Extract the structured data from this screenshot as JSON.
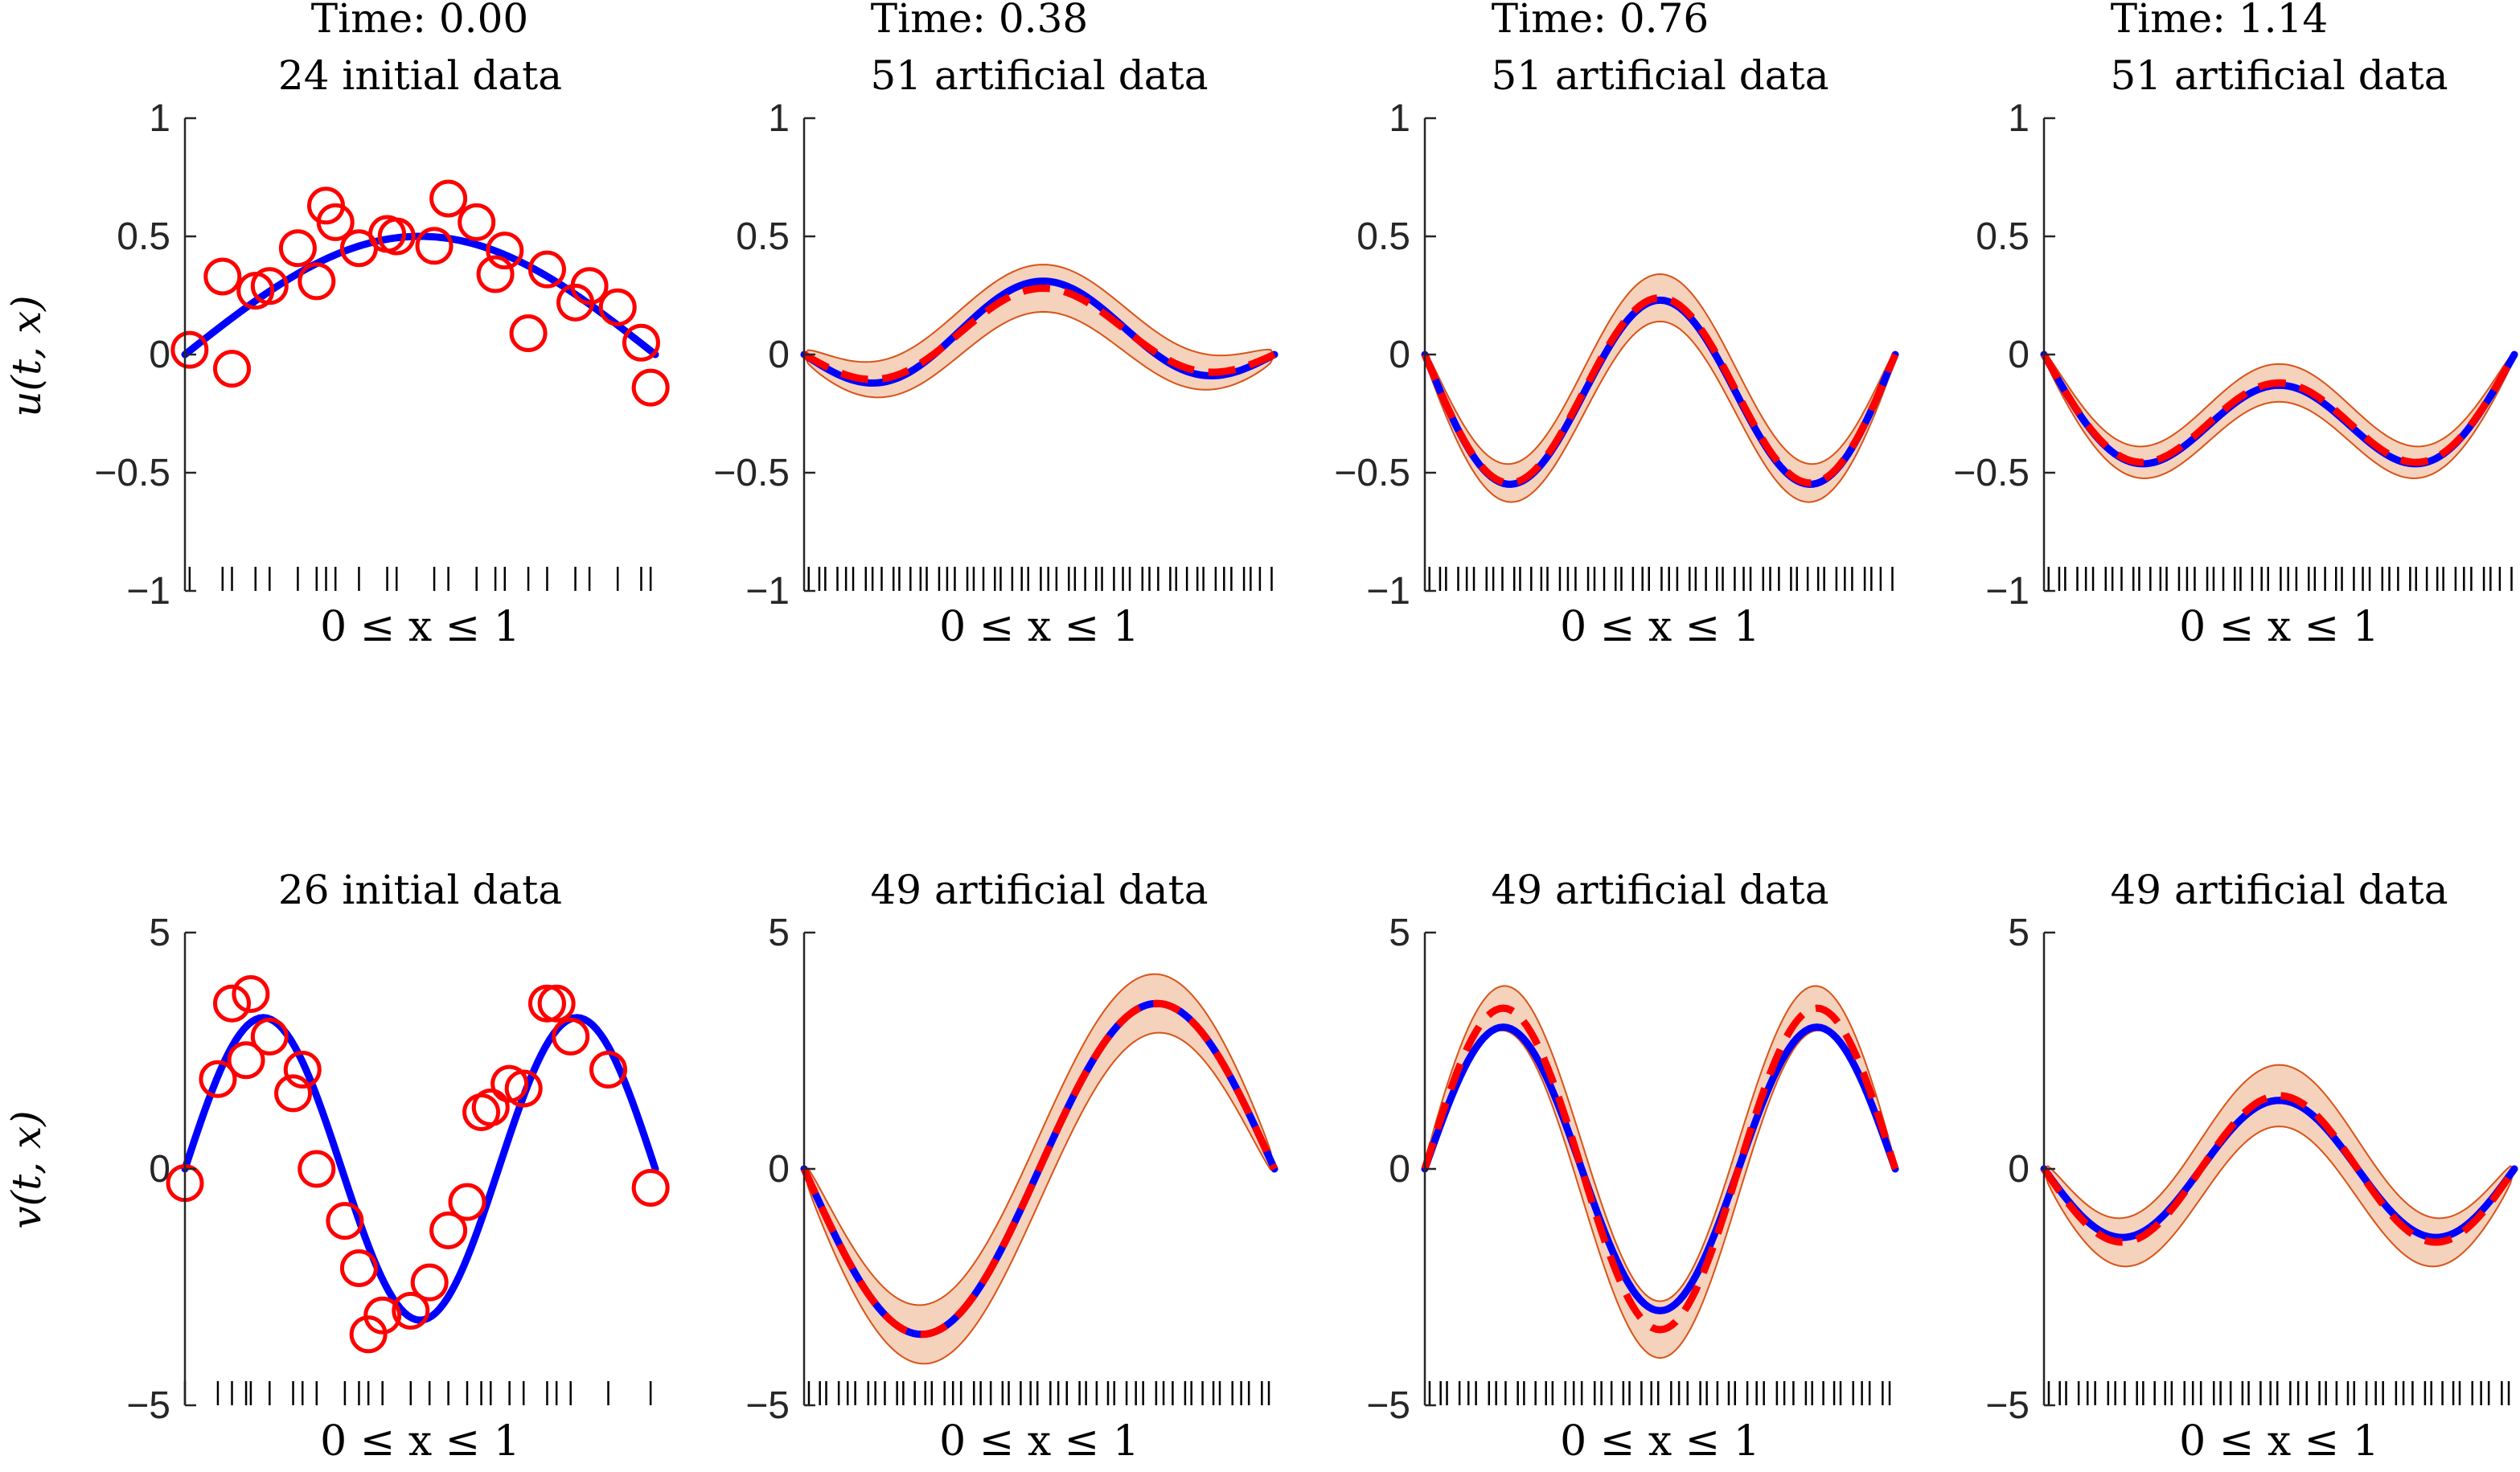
{
  "figure": {
    "row_ylabels": [
      "u(t, x)",
      "v(t, x)"
    ],
    "xlabel": "0 ≤ x ≤ 1",
    "time_labels": [
      "Time: 0.00",
      "Time: 0.38",
      "Time: 0.76",
      "Time: 1.14"
    ]
  },
  "colors": {
    "truth": "#0000ff",
    "mean": "#ff0000",
    "band_fill": "#f5d2bb",
    "band_edge": "#d95319",
    "data_marker": "#ff0000",
    "axis": "#262626"
  },
  "chart_data": [
    {
      "type": "line",
      "panel": "u-0",
      "row": 0,
      "col": 0,
      "title": "24 initial data",
      "time": "Time: 0.00",
      "ylabel": "u(t, x)",
      "xlabel": "0 ≤ x ≤ 1",
      "xlim": [
        0,
        1
      ],
      "ylim": [
        -1,
        1
      ],
      "yticks": [
        -1,
        -0.5,
        0,
        0.5,
        1
      ],
      "truth": {
        "kind": "sin",
        "a1": 0.5,
        "a2": 0,
        "a3": 0
      },
      "scatter": {
        "x": [
          0.01,
          0.08,
          0.1,
          0.15,
          0.18,
          0.24,
          0.28,
          0.3,
          0.32,
          0.37,
          0.43,
          0.45,
          0.53,
          0.56,
          0.62,
          0.66,
          0.68,
          0.73,
          0.77,
          0.83,
          0.86,
          0.92,
          0.97,
          0.99
        ],
        "y": [
          0.02,
          0.33,
          -0.06,
          0.27,
          0.29,
          0.45,
          0.31,
          0.63,
          0.56,
          0.45,
          0.51,
          0.5,
          0.46,
          0.66,
          0.56,
          0.34,
          0.44,
          0.09,
          0.36,
          0.22,
          0.29,
          0.2,
          0.05,
          -0.14
        ]
      }
    },
    {
      "type": "line",
      "panel": "u-1",
      "row": 0,
      "col": 1,
      "title": "51 artificial data",
      "time": "Time: 0.38",
      "xlabel": "0 ≤ x ≤ 1",
      "xlim": [
        0,
        1
      ],
      "ylim": [
        -1,
        1
      ],
      "yticks": [
        -1,
        -0.5,
        0,
        0.5,
        1
      ],
      "truth": {
        "kind": "sin",
        "a1": 0.14,
        "a2": -0.02,
        "a3": -0.17
      },
      "mean": {
        "kind": "sin",
        "a1": 0.13,
        "a2": -0.02,
        "a3": -0.15
      },
      "band_halfwidth": 0.1,
      "ticks_count": 51
    },
    {
      "type": "line",
      "panel": "u-2",
      "row": 0,
      "col": 2,
      "title": "51 artificial data",
      "time": "Time: 0.76",
      "xlabel": "0 ≤ x ≤ 1",
      "xlim": [
        0,
        1
      ],
      "ylim": [
        -1,
        1
      ],
      "yticks": [
        -1,
        -0.5,
        0,
        0.5,
        1
      ],
      "truth": {
        "kind": "sin",
        "a1": -0.21,
        "a2": 0,
        "a3": -0.44
      },
      "mean": {
        "kind": "sin",
        "a1": -0.2,
        "a2": 0,
        "a3": -0.44
      },
      "band_halfwidth": 0.1,
      "ticks_count": 51
    },
    {
      "type": "line",
      "panel": "u-3",
      "row": 0,
      "col": 3,
      "title": "51 artificial data",
      "time": "Time: 1.14",
      "xlabel": "0 ≤ x ≤ 1",
      "xlim": [
        0,
        1
      ],
      "ylim": [
        -1,
        1
      ],
      "yticks": [
        -1,
        -0.5,
        0,
        0.5,
        1
      ],
      "truth": {
        "kind": "sin",
        "a1": -0.38,
        "a2": 0,
        "a3": -0.25
      },
      "mean": {
        "kind": "sin",
        "a1": -0.37,
        "a2": 0,
        "a3": -0.25
      },
      "band_halfwidth": 0.08,
      "ticks_count": 51
    },
    {
      "type": "line",
      "panel": "v-0",
      "row": 1,
      "col": 0,
      "title": "26 initial data",
      "ylabel": "v(t, x)",
      "xlabel": "0 ≤ x ≤ 1",
      "xlim": [
        0,
        1
      ],
      "ylim": [
        -5,
        5
      ],
      "yticks": [
        -5,
        0,
        5
      ],
      "truth": {
        "kind": "sin",
        "a1": 0,
        "a2": 0,
        "a3": 3.2
      },
      "scatter": {
        "x": [
          0.0,
          0.07,
          0.1,
          0.13,
          0.14,
          0.18,
          0.23,
          0.25,
          0.28,
          0.34,
          0.37,
          0.39,
          0.42,
          0.48,
          0.52,
          0.56,
          0.6,
          0.63,
          0.65,
          0.69,
          0.72,
          0.77,
          0.79,
          0.82,
          0.9,
          0.99
        ],
        "y": [
          -0.3,
          1.9,
          3.5,
          2.3,
          3.7,
          2.8,
          1.6,
          2.1,
          0.0,
          -1.1,
          -2.1,
          -3.5,
          -3.1,
          -3.0,
          -2.4,
          -1.3,
          -0.7,
          1.2,
          1.3,
          1.8,
          1.7,
          3.5,
          3.5,
          2.8,
          2.1,
          -0.4
        ]
      }
    },
    {
      "type": "line",
      "panel": "v-1",
      "row": 1,
      "col": 1,
      "title": "49 artificial data",
      "xlabel": "0 ≤ x ≤ 1",
      "xlim": [
        0,
        1
      ],
      "ylim": [
        -5,
        5
      ],
      "yticks": [
        -5,
        0,
        5
      ],
      "truth": {
        "kind": "sin",
        "a1": 0,
        "a2": -3.5,
        "a3": 0
      },
      "mean": {
        "kind": "sin",
        "a1": 0,
        "a2": -3.5,
        "a3": 0
      },
      "band_halfwidth": 0.7,
      "ticks_count": 49
    },
    {
      "type": "line",
      "panel": "v-2",
      "row": 1,
      "col": 2,
      "title": "49 artificial data",
      "xlabel": "0 ≤ x ≤ 1",
      "xlim": [
        0,
        1
      ],
      "ylim": [
        -5,
        5
      ],
      "yticks": [
        -5,
        0,
        5
      ],
      "truth": {
        "kind": "sin",
        "a1": 0,
        "a2": 0,
        "a3": 3.0
      },
      "mean": {
        "kind": "sin",
        "a1": 0,
        "a2": 0,
        "a3": 3.4
      },
      "band_halfwidth": 0.6,
      "ticks_count": 49
    },
    {
      "type": "line",
      "panel": "v-3",
      "row": 1,
      "col": 3,
      "title": "49 artificial data",
      "xlabel": "0 ≤ x ≤ 1",
      "xlim": [
        0,
        1
      ],
      "ylim": [
        -5,
        5
      ],
      "yticks": [
        -5,
        0,
        5
      ],
      "truth": {
        "kind": "sin",
        "a1": 0,
        "a2": 0,
        "a3": -1.45
      },
      "mean": {
        "kind": "sin",
        "a1": 0,
        "a2": 0,
        "a3": -1.55
      },
      "band_halfwidth": 0.65,
      "ticks_count": 49
    }
  ]
}
